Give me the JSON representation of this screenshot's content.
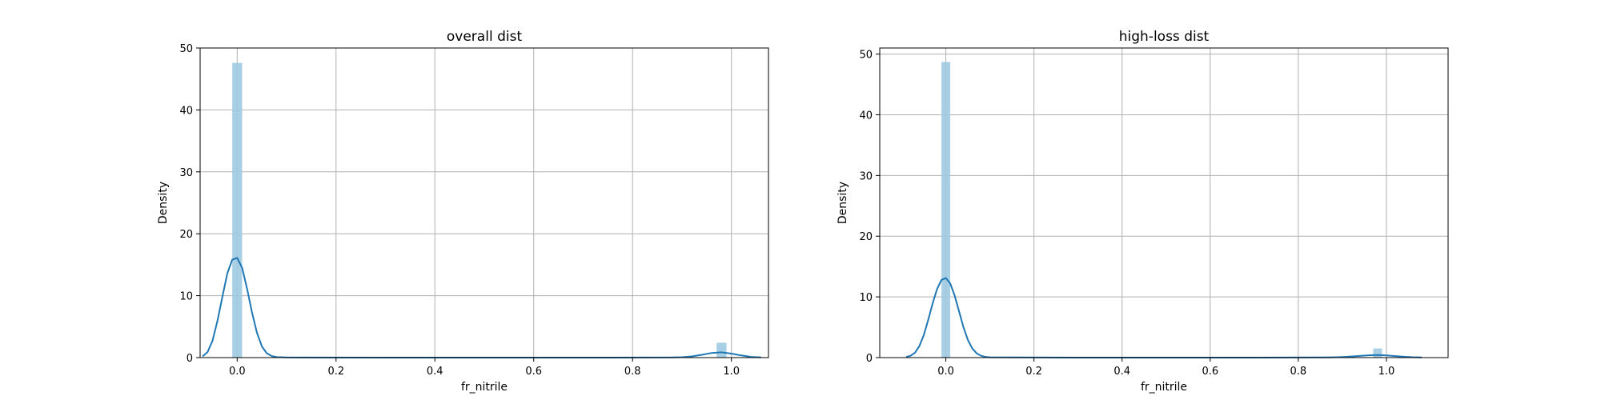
{
  "chart_data": [
    {
      "type": "bar",
      "title": "overall dist",
      "xlabel": "fr_nitrile",
      "ylabel": "Density",
      "xlim": [
        -0.075,
        1.075
      ],
      "ylim": [
        0,
        50
      ],
      "xticks": [
        "0.0",
        "0.2",
        "0.4",
        "0.6",
        "0.8",
        "1.0"
      ],
      "yticks": [
        "0",
        "10",
        "20",
        "30",
        "40",
        "50"
      ],
      "grid": true,
      "bin_width": 0.02,
      "histogram": {
        "x": [
          0.0,
          0.98
        ],
        "density": [
          47.6,
          2.4
        ]
      },
      "kde": {
        "x": [
          -0.07,
          -0.06,
          -0.05,
          -0.04,
          -0.03,
          -0.02,
          -0.01,
          0.0,
          0.01,
          0.02,
          0.03,
          0.04,
          0.05,
          0.06,
          0.07,
          0.08,
          0.1,
          0.3,
          0.5,
          0.7,
          0.88,
          0.9,
          0.92,
          0.94,
          0.96,
          0.98,
          1.0,
          1.02,
          1.04,
          1.06
        ],
        "density": [
          0.2,
          0.9,
          2.7,
          5.9,
          9.8,
          13.6,
          15.8,
          16.1,
          14.5,
          11.1,
          7.3,
          4.0,
          1.8,
          0.7,
          0.25,
          0.08,
          0.02,
          0.0,
          0.0,
          0.0,
          0.02,
          0.06,
          0.2,
          0.45,
          0.75,
          0.85,
          0.65,
          0.35,
          0.12,
          0.03
        ]
      },
      "colors": {
        "bar": "#9ecae1",
        "line": "#1f77b4"
      }
    },
    {
      "type": "bar",
      "title": "high-loss dist",
      "xlabel": "fr_nitrile",
      "ylabel": "Density",
      "xlim": [
        -0.15,
        1.14
      ],
      "ylim": [
        0,
        51
      ],
      "xticks": [
        "0.0",
        "0.2",
        "0.4",
        "0.6",
        "0.8",
        "1.0"
      ],
      "yticks": [
        "0",
        "10",
        "20",
        "30",
        "40",
        "50"
      ],
      "grid": true,
      "bin_width": 0.02,
      "histogram": {
        "x": [
          0.0,
          0.98
        ],
        "density": [
          48.7,
          1.5
        ]
      },
      "kde": {
        "x": [
          -0.09,
          -0.08,
          -0.07,
          -0.06,
          -0.05,
          -0.04,
          -0.03,
          -0.02,
          -0.01,
          0.0,
          0.01,
          0.02,
          0.03,
          0.04,
          0.05,
          0.06,
          0.07,
          0.08,
          0.09,
          0.1,
          0.3,
          0.5,
          0.7,
          0.86,
          0.88,
          0.9,
          0.92,
          0.94,
          0.96,
          0.98,
          1.0,
          1.02,
          1.04,
          1.06,
          1.08
        ],
        "density": [
          0.1,
          0.3,
          0.8,
          1.9,
          3.7,
          6.2,
          8.9,
          11.3,
          12.8,
          13.1,
          12.2,
          10.2,
          7.6,
          5.0,
          2.9,
          1.5,
          0.7,
          0.3,
          0.12,
          0.05,
          0.0,
          0.0,
          0.0,
          0.02,
          0.05,
          0.1,
          0.18,
          0.28,
          0.38,
          0.42,
          0.36,
          0.25,
          0.14,
          0.06,
          0.02
        ]
      },
      "colors": {
        "bar": "#9ecae1",
        "line": "#1f77b4"
      }
    }
  ]
}
